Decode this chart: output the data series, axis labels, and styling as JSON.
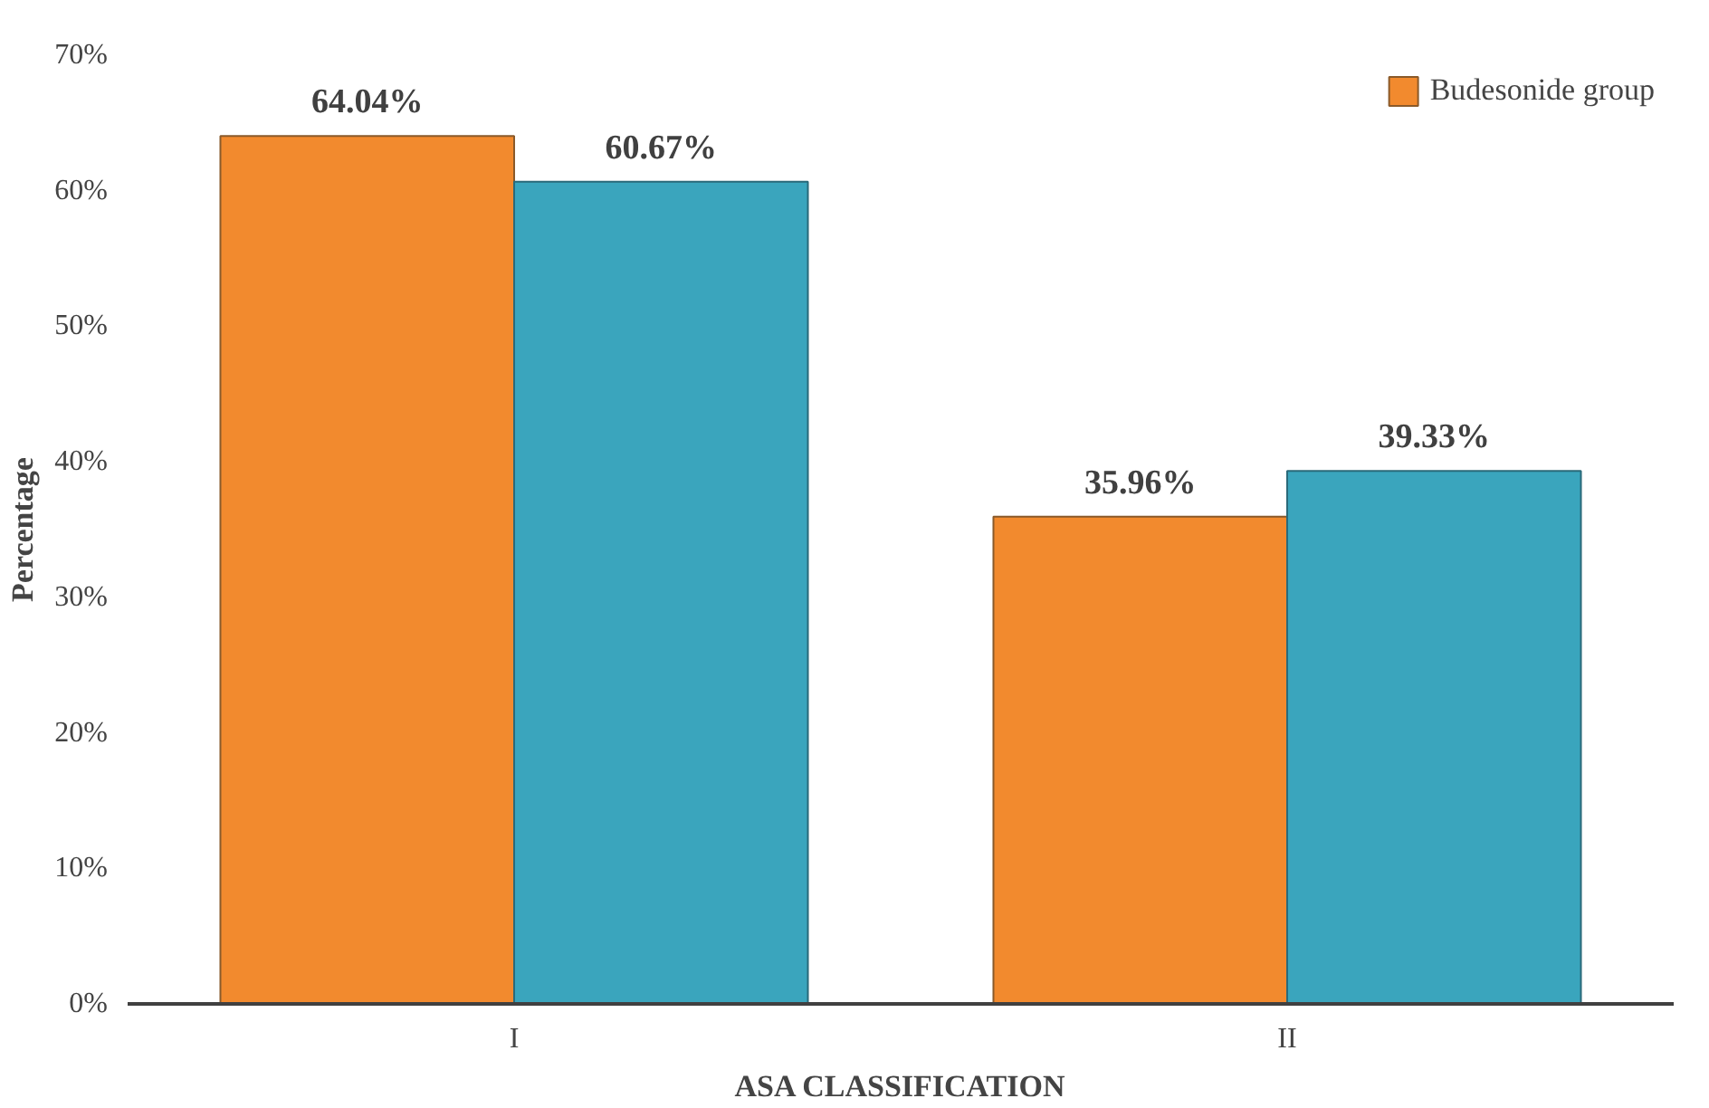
{
  "chart_data": {
    "type": "bar",
    "xlabel": "ASA CLASSIFICATION",
    "ylabel": "Percentage",
    "categories": [
      "I",
      "II"
    ],
    "series": [
      {
        "name": "Budesonide group",
        "color": "#f28a2e",
        "values": [
          64.04,
          35.96
        ]
      },
      {
        "color": "#3aa5bd",
        "values": [
          60.67,
          39.33
        ]
      }
    ],
    "value_labels": [
      [
        "64.04%",
        "35.96%"
      ],
      [
        "60.67%",
        "39.33%"
      ]
    ],
    "ylim": [
      0,
      70
    ],
    "yticks": [
      {
        "value": 0,
        "label": "0%"
      },
      {
        "value": 10,
        "label": "10%"
      },
      {
        "value": 20,
        "label": "20%"
      },
      {
        "value": 30,
        "label": "30%"
      },
      {
        "value": 40,
        "label": "40%"
      },
      {
        "value": 50,
        "label": "50%"
      },
      {
        "value": 60,
        "label": "60%"
      },
      {
        "value": 70,
        "label": "70%"
      }
    ],
    "grid": false,
    "legend": "top right"
  }
}
